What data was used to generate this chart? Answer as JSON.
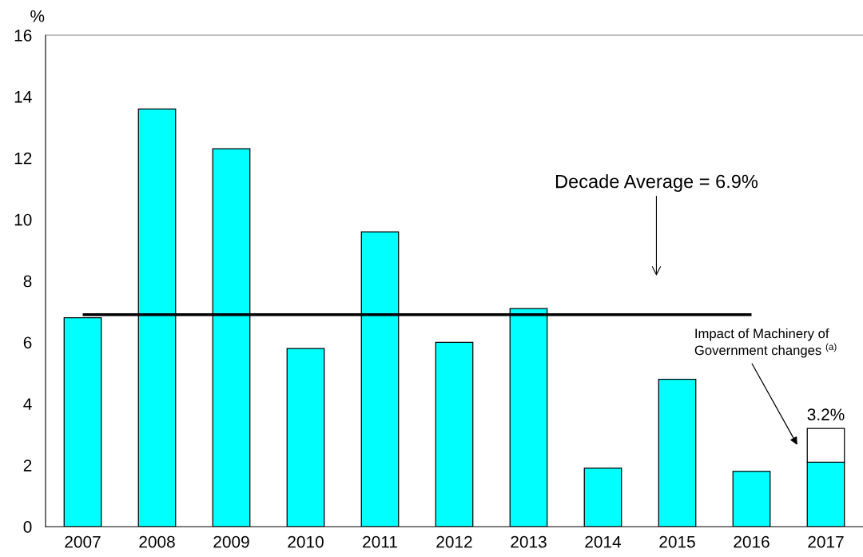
{
  "chart_data": {
    "type": "bar",
    "stacked": true,
    "ylabel": "%",
    "categories": [
      "2007",
      "2008",
      "2009",
      "2010",
      "2011",
      "2012",
      "2013",
      "2014",
      "2015",
      "2016",
      "2017"
    ],
    "series": [
      {
        "color": "#00ffff",
        "values": [
          6.8,
          13.6,
          12.3,
          5.8,
          9.6,
          6.0,
          7.1,
          1.9,
          4.8,
          1.8,
          2.1
        ]
      },
      {
        "color": "#ffffff",
        "values": [
          null,
          null,
          null,
          null,
          null,
          null,
          null,
          null,
          null,
          null,
          1.1
        ]
      }
    ],
    "totals": [
      null,
      null,
      null,
      null,
      null,
      null,
      null,
      null,
      null,
      null,
      "3.2%"
    ],
    "ylim": [
      0,
      16
    ],
    "yticks": [
      0,
      2,
      4,
      6,
      8,
      10,
      12,
      14,
      16
    ],
    "ref_lines": [
      {
        "axis": "y",
        "value": 6.9,
        "label": "Decade Average = 6.9%",
        "color": "#000000"
      }
    ],
    "annotations": [
      "Impact of Machinery of\nGovernment changes $^{(a)}$"
    ],
    "grid": false,
    "legend": false
  }
}
